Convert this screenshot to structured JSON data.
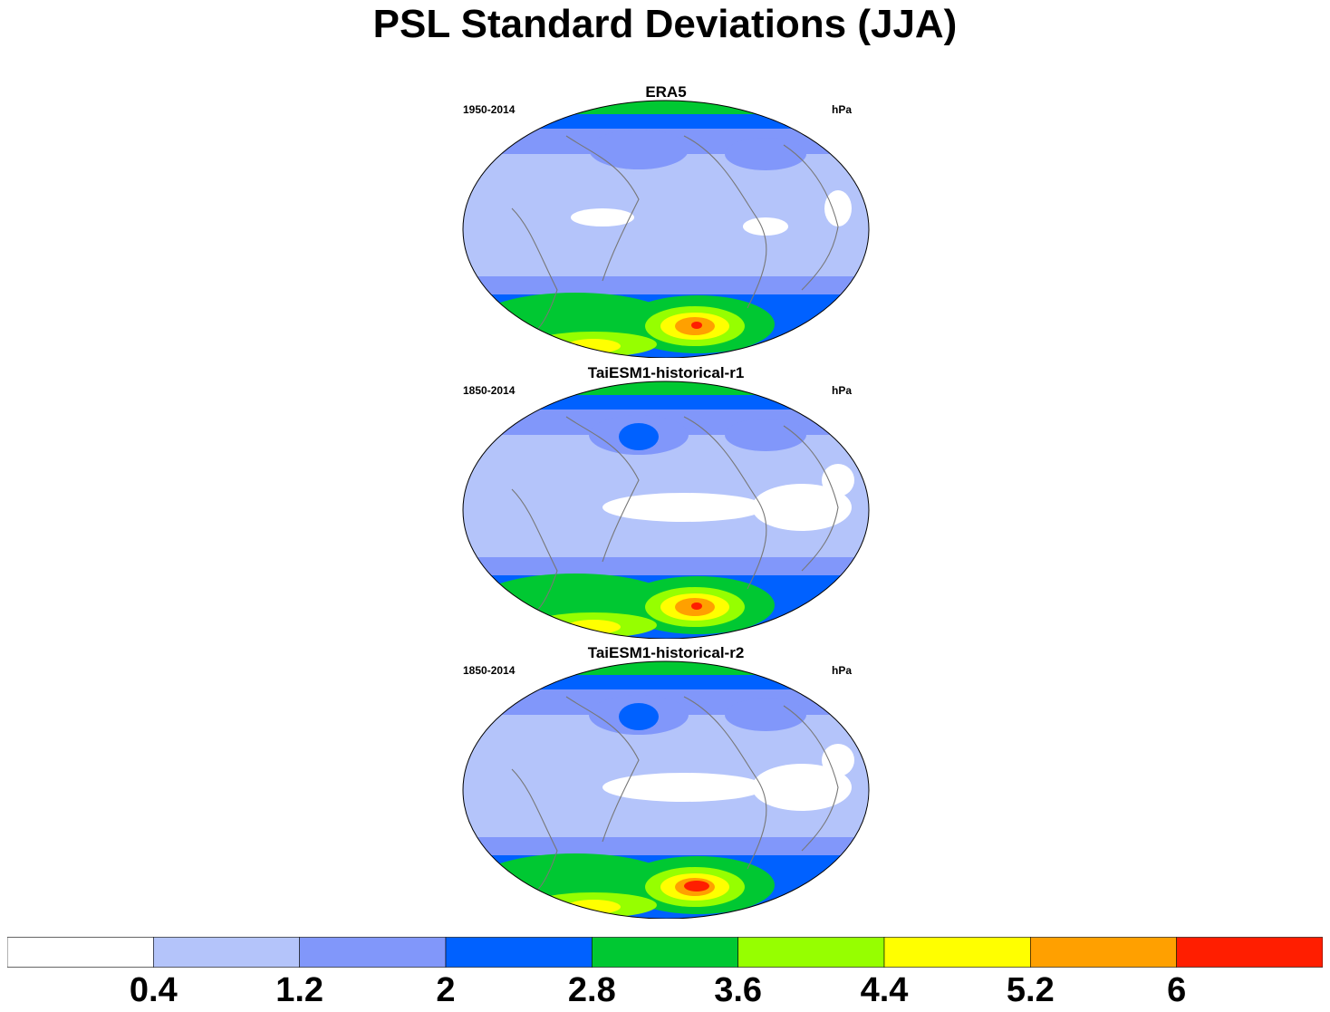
{
  "title": "PSL Standard Deviations (JJA)",
  "panels": [
    {
      "title": "ERA5",
      "left_label": "1950-2014",
      "right_label": "hPa",
      "variant": 0
    },
    {
      "title": "TaiESM1-historical-r1",
      "left_label": "1850-2014",
      "right_label": "hPa",
      "variant": 1
    },
    {
      "title": "TaiESM1-historical-r2",
      "left_label": "1850-2014",
      "right_label": "hPa",
      "variant": 2
    }
  ],
  "colorbar": {
    "colors": [
      "#ffffff",
      "#b4c4fa",
      "#8197fa",
      "#0061ff",
      "#00c832",
      "#96ff00",
      "#ffff00",
      "#ffa000",
      "#ff1e00"
    ],
    "labels": [
      "0.4",
      "1.2",
      "2",
      "2.8",
      "3.6",
      "4.4",
      "5.2",
      "6"
    ]
  }
}
